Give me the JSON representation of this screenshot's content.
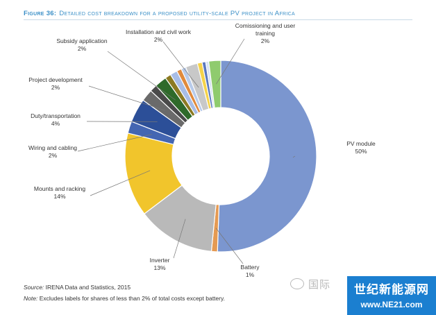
{
  "title_prefix": "Figure 36:",
  "title_text": "Detailed cost breakdown for a proposed utility-scale PV project in Africa",
  "source_label": "Source:",
  "source_text": "IRENA Data and Statistics, 2015",
  "note_label": "Note:",
  "note_text": "Excludes labels for shares of less than 2% of total costs except battery.",
  "watermark_wechat": "国际",
  "watermark_cn": "世纪新能源网",
  "watermark_url": "www.NE21.com",
  "chart_data": {
    "type": "pie",
    "subtype": "donut",
    "title": "Detailed cost breakdown for a proposed utility-scale PV project in Africa",
    "unit": "%",
    "slices": [
      {
        "name": "PV module",
        "value": 50,
        "label": "PV module",
        "value_label": "50%",
        "color": "#7b96cf"
      },
      {
        "name": "Battery",
        "value": 1,
        "label": "Battery",
        "value_label": "1%",
        "color": "#e59a52"
      },
      {
        "name": "Inverter",
        "value": 13,
        "label": "Inverter",
        "value_label": "13%",
        "color": "#b9b9b9"
      },
      {
        "name": "Mounts and racking",
        "value": 14,
        "label": "Mounts and racking",
        "value_label": "14%",
        "color": "#f1c52c"
      },
      {
        "name": "Wiring and cabling",
        "value": 2,
        "label": "Wiring and cabling",
        "value_label": "2%",
        "color": "#4466b2"
      },
      {
        "name": "Duty/transportation",
        "value": 4,
        "label": "Duty/transportation",
        "value_label": "4%",
        "color": "#2c4f98"
      },
      {
        "name": "Project development",
        "value": 2,
        "label": "Project development",
        "value_label": "2%",
        "color": "#6a6a6a"
      },
      {
        "name": "Other (dark)",
        "value": 1.2,
        "label": "",
        "value_label": "",
        "color": "#4a4a4a"
      },
      {
        "name": "Subsidy application",
        "value": 2,
        "label": "Subsidy application",
        "value_label": "2%",
        "color": "#2e6a2a"
      },
      {
        "name": "Other (olive)",
        "value": 1,
        "label": "",
        "value_label": "",
        "color": "#8c7a22"
      },
      {
        "name": "Other (light blue)",
        "value": 1.2,
        "label": "",
        "value_label": "",
        "color": "#a8bde6"
      },
      {
        "name": "Other (orange)",
        "value": 0.8,
        "label": "",
        "value_label": "",
        "color": "#e08a3c"
      },
      {
        "name": "Other (light blue 2)",
        "value": 0.8,
        "label": "",
        "value_label": "",
        "color": "#b8cbea"
      },
      {
        "name": "Installation and civil work",
        "value": 2,
        "label": "Installation and civil work",
        "value_label": "2%",
        "color": "#c8c8c8"
      },
      {
        "name": "Other (yellow)",
        "value": 0.8,
        "label": "",
        "value_label": "",
        "color": "#f5d34a"
      },
      {
        "name": "Other (blue)",
        "value": 0.6,
        "label": "",
        "value_label": "",
        "color": "#5b79bf"
      },
      {
        "name": "Other (light)",
        "value": 0.5,
        "label": "",
        "value_label": "",
        "color": "#d6e2f2"
      },
      {
        "name": "Commissioning and user training",
        "value": 2,
        "label": "Commissioning and user training",
        "value_label": "2%",
        "color": "#8fcb6e"
      }
    ],
    "labels": [
      {
        "slice": "PV module",
        "lines": [
          "PV module"
        ],
        "value_label": "50%"
      },
      {
        "slice": "Battery",
        "lines": [
          "Battery"
        ],
        "value_label": "1%"
      },
      {
        "slice": "Inverter",
        "lines": [
          "Inverter"
        ],
        "value_label": "13%"
      },
      {
        "slice": "Mounts and racking",
        "lines": [
          "Mounts and racking"
        ],
        "value_label": "14%"
      },
      {
        "slice": "Wiring and cabling",
        "lines": [
          "Wiring and cabling"
        ],
        "value_label": "2%"
      },
      {
        "slice": "Duty/transportation",
        "lines": [
          "Duty/transportation"
        ],
        "value_label": "4%"
      },
      {
        "slice": "Project development",
        "lines": [
          "Project development"
        ],
        "value_label": "2%"
      },
      {
        "slice": "Subsidy application",
        "lines": [
          "Subsidy application"
        ],
        "value_label": "2%"
      },
      {
        "slice": "Installation and civil work",
        "lines": [
          "Installation and civil work"
        ],
        "value_label": "2%"
      },
      {
        "slice": "Commissioning and user training",
        "lines": [
          "Comissioning and user",
          "training"
        ],
        "value_label": "2%"
      }
    ]
  }
}
